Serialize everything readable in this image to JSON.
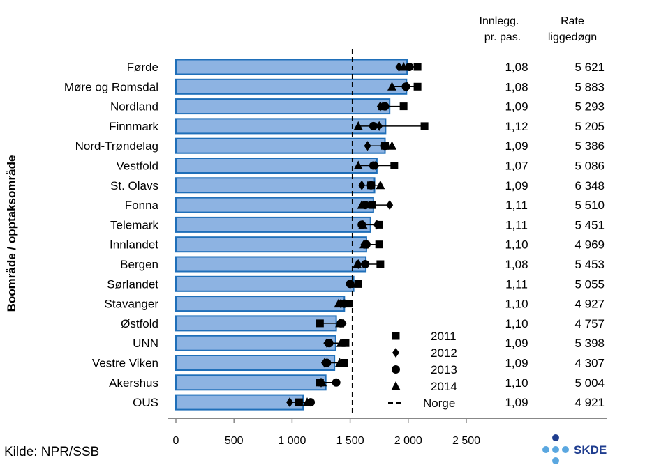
{
  "chart_data": {
    "type": "bar",
    "ylabel": "Boområde / opptaksområde",
    "xlim": [
      0,
      2500
    ],
    "xticks": [
      0,
      500,
      1000,
      1500,
      2000,
      2500
    ],
    "xtick_labels": [
      "0",
      "500",
      "1 000",
      "1 500",
      "2 000",
      "2 500"
    ],
    "norge_line": 1520,
    "bar_color": "#8db3e2",
    "bar_edge_color": "#1f6fb9",
    "categories": [
      "Førde",
      "Møre og Romsdal",
      "Nordland",
      "Finnmark",
      "Nord-Trøndelag",
      "Vestfold",
      "St. Olavs",
      "Fonna",
      "Telemark",
      "Innlandet",
      "Bergen",
      "Sørlandet",
      "Stavanger",
      "Østfold",
      "UNN",
      "Vestre Viken",
      "Akershus",
      "OUS"
    ],
    "values": [
      1990,
      1985,
      1840,
      1805,
      1800,
      1730,
      1710,
      1700,
      1675,
      1640,
      1635,
      1530,
      1450,
      1380,
      1375,
      1365,
      1290,
      1095
    ],
    "series": [
      {
        "name": "2011",
        "marker": "square",
        "values": [
          2080,
          2080,
          1960,
          2140,
          1800,
          1880,
          1680,
          1690,
          1750,
          1750,
          1760,
          1570,
          1490,
          1240,
          1460,
          1450,
          1240,
          1060
        ]
      },
      {
        "name": "2012",
        "marker": "diamond",
        "values": [
          1920,
          1990,
          1760,
          1750,
          1650,
          1720,
          1600,
          1840,
          1730,
          1620,
          1570,
          1500,
          1420,
          1440,
          1300,
          1280,
          1250,
          980
        ]
      },
      {
        "name": "2013",
        "marker": "circle",
        "values": [
          2010,
          1980,
          1800,
          1700,
          1800,
          1700,
          1680,
          1630,
          1600,
          1640,
          1630,
          1500,
          1450,
          1420,
          1320,
          1300,
          1380,
          1160
        ]
      },
      {
        "name": "2014",
        "marker": "triangle",
        "values": [
          1960,
          1860,
          1780,
          1570,
          1860,
          1570,
          1760,
          1600,
          1610,
          1620,
          1560,
          1560,
          1400,
          1410,
          1420,
          1410,
          1260,
          1130
        ]
      }
    ],
    "legend": [
      "2011",
      "2012",
      "2013",
      "2014",
      "Norge"
    ],
    "legend_position": "bottom-right",
    "table_headers": {
      "col1_line1": "Innlegg.",
      "col1_line2": "pr. pas.",
      "col2_line1": "Rate",
      "col2_line2": "liggedøgn"
    },
    "innlegg_pr_pas": [
      "1,08",
      "1,08",
      "1,09",
      "1,12",
      "1,09",
      "1,07",
      "1,09",
      "1,11",
      "1,11",
      "1,10",
      "1,08",
      "1,11",
      "1,10",
      "1,10",
      "1,09",
      "1,09",
      "1,10",
      "1,09"
    ],
    "rate_liggedogn": [
      "5 621",
      "5 883",
      "5 293",
      "5 205",
      "5 386",
      "5 086",
      "6 348",
      "5 510",
      "5 451",
      "4 969",
      "5 453",
      "5 055",
      "4 927",
      "4 757",
      "5 398",
      "4 307",
      "5 004",
      "4 921"
    ]
  },
  "source": "Kilde: NPR/SSB",
  "logo_text": "SKDE",
  "logo_color": "#1f3d8f",
  "logo_dot_color": "#5aa7e0"
}
